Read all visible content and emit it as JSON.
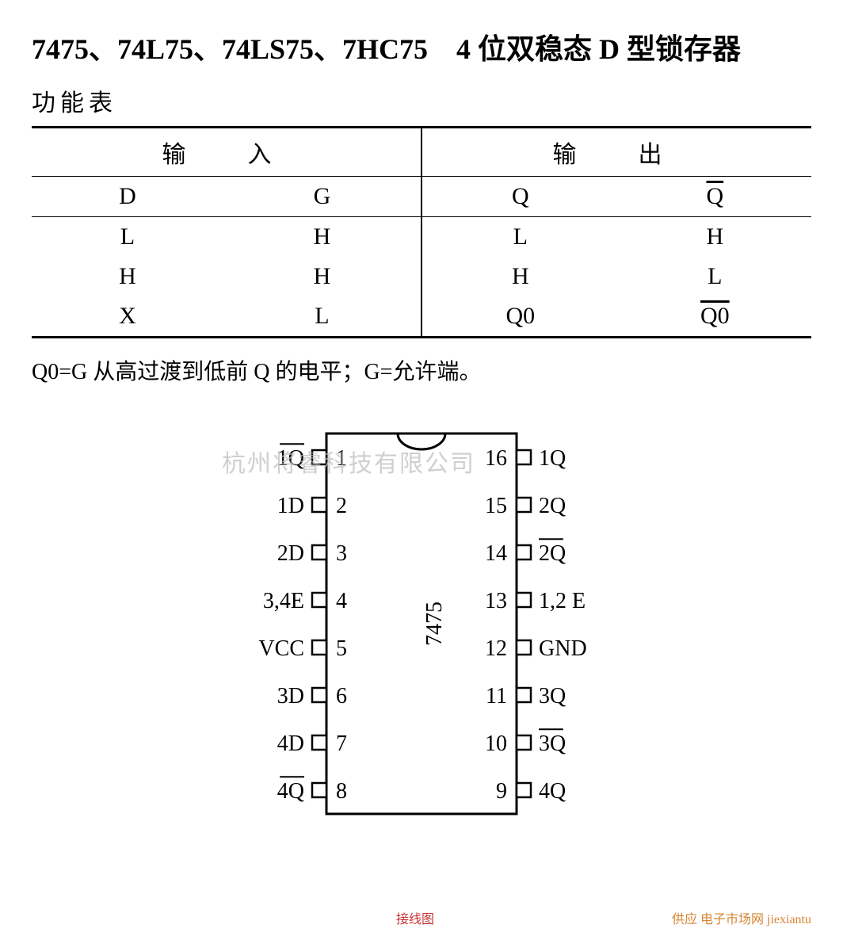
{
  "title": "7475、74L75、74LS75、7HC75　4 位双稳态 D 型锁存器",
  "subtitle": "功能表",
  "table": {
    "input_header": "输　入",
    "output_header": "输　出",
    "cols": [
      "D",
      "G",
      "Q",
      "Q̄"
    ],
    "rows": [
      [
        "L",
        "H",
        "L",
        "H"
      ],
      [
        "H",
        "H",
        "H",
        "L"
      ],
      [
        "X",
        "L",
        "Q0",
        "Q̄0̄"
      ]
    ]
  },
  "note": "Q0=G 从高过渡到低前 Q 的电平；G=允许端。",
  "watermark1": "杭州将睿科技有限公司",
  "watermark2": "供应 电子市场网 jiexiantu",
  "watermark3": "接线图",
  "chip": {
    "label": "7475",
    "body_width": 240,
    "body_height": 480,
    "pin_count_side": 8,
    "border_color": "#000000",
    "bg_color": "#ffffff",
    "font_size": 28,
    "left_pins": [
      {
        "num": "1",
        "label": "1Q",
        "overline": true
      },
      {
        "num": "2",
        "label": "1D",
        "overline": false
      },
      {
        "num": "3",
        "label": "2D",
        "overline": false
      },
      {
        "num": "4",
        "label": "3,4E",
        "overline": false
      },
      {
        "num": "5",
        "label": "VCC",
        "overline": false
      },
      {
        "num": "6",
        "label": "3D",
        "overline": false
      },
      {
        "num": "7",
        "label": "4D",
        "overline": false
      },
      {
        "num": "8",
        "label": "4Q",
        "overline": true
      }
    ],
    "right_pins": [
      {
        "num": "16",
        "label": "1Q",
        "overline": false
      },
      {
        "num": "15",
        "label": "2Q",
        "overline": false
      },
      {
        "num": "14",
        "label": "2Q",
        "overline": true
      },
      {
        "num": "13",
        "label": "1,2 E",
        "overline": false
      },
      {
        "num": "12",
        "label": "GND",
        "overline": false
      },
      {
        "num": "11",
        "label": "3Q",
        "overline": false
      },
      {
        "num": "10",
        "label": "3Q",
        "overline": true
      },
      {
        "num": "9",
        "label": "4Q",
        "overline": false
      }
    ]
  }
}
